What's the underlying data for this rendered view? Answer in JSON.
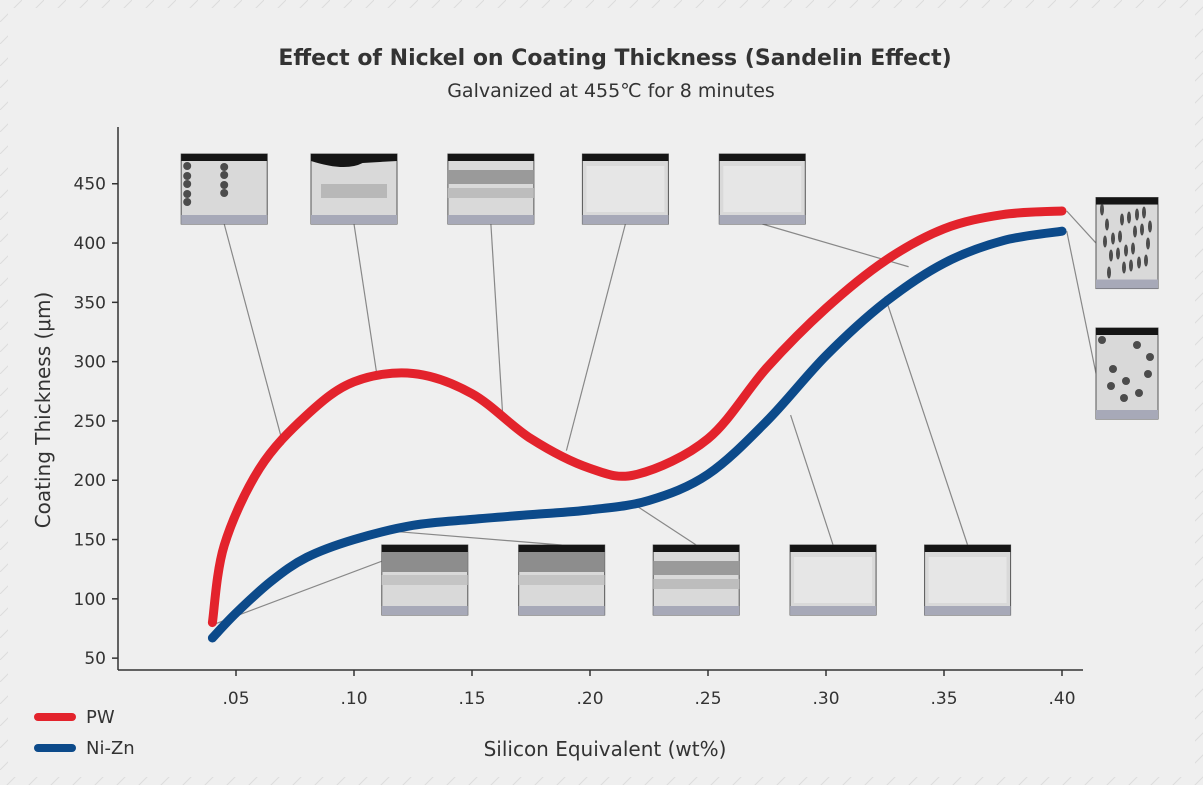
{
  "chart_data": {
    "type": "line",
    "title": "Effect of Nickel on Coating Thickness (Sandelin Effect)",
    "subtitle": "Galvanized at 455℃ for 8 minutes",
    "xlabel": "Silicon Equivalent (wt%)",
    "ylabel": "Coating Thickness (μm)",
    "xlim": [
      0,
      0.42
    ],
    "ylim": [
      0,
      460
    ],
    "x_ticks": [
      {
        "value": 0.05,
        "label": ".05"
      },
      {
        "value": 0.1,
        "label": ".10"
      },
      {
        "value": 0.15,
        "label": ".15"
      },
      {
        "value": 0.2,
        "label": ".20"
      },
      {
        "value": 0.25,
        "label": ".25"
      },
      {
        "value": 0.3,
        "label": ".30"
      },
      {
        "value": 0.35,
        "label": ".35"
      },
      {
        "value": 0.4,
        "label": ".40"
      }
    ],
    "y_ticks": [
      50,
      100,
      150,
      200,
      250,
      300,
      350,
      400,
      450
    ],
    "legend_position": "bottom-left",
    "grid": false,
    "series": [
      {
        "name": "PW",
        "color": "#e3232c",
        "x": [
          0.04,
          0.045,
          0.06,
          0.08,
          0.1,
          0.125,
          0.15,
          0.175,
          0.2,
          0.22,
          0.25,
          0.275,
          0.3,
          0.325,
          0.35,
          0.375,
          0.4
        ],
        "y": [
          80,
          145,
          210,
          255,
          283,
          290,
          273,
          235,
          210,
          205,
          235,
          295,
          345,
          385,
          412,
          424,
          427
        ]
      },
      {
        "name": "Ni-Zn",
        "color": "#0c4a8a",
        "x": [
          0.04,
          0.05,
          0.065,
          0.08,
          0.1,
          0.125,
          0.15,
          0.175,
          0.2,
          0.225,
          0.25,
          0.275,
          0.3,
          0.325,
          0.35,
          0.375,
          0.4
        ],
        "y": [
          67,
          88,
          115,
          135,
          150,
          162,
          167,
          171,
          175,
          183,
          205,
          250,
          305,
          350,
          383,
          402,
          410
        ]
      }
    ]
  },
  "micrographs": [
    {
      "name": "pw-micrograph-1",
      "x": 0.045,
      "y": 400,
      "tx": 0.07,
      "ty": 230,
      "variant": "dark-spots",
      "side": "top"
    },
    {
      "name": "pw-micrograph-2",
      "x": 0.1,
      "y": 400,
      "tx": 0.11,
      "ty": 285,
      "variant": "wave",
      "side": "top"
    },
    {
      "name": "pw-micrograph-3",
      "x": 0.158,
      "y": 400,
      "tx": 0.163,
      "ty": 255,
      "variant": "layered",
      "side": "top"
    },
    {
      "name": "pw-micrograph-4",
      "x": 0.215,
      "y": 400,
      "tx": 0.19,
      "ty": 225,
      "variant": "light",
      "side": "top"
    },
    {
      "name": "pw-micrograph-5",
      "x": 0.273,
      "y": 400,
      "tx": 0.335,
      "ty": 380,
      "variant": "light",
      "side": "top"
    },
    {
      "name": "pw-micrograph-6",
      "x": 0.425,
      "y": 400,
      "tx": 0.402,
      "ty": 427,
      "variant": "dark-columnar",
      "side": "right"
    },
    {
      "name": "nizn-micrograph-6",
      "x": 0.425,
      "y": 290,
      "tx": 0.402,
      "ty": 410,
      "variant": "dark-spots",
      "side": "right"
    },
    {
      "name": "nizn-micrograph-1",
      "x": 0.13,
      "y": 81,
      "tx": 0.04,
      "ty": 78,
      "variant": "thin-dark",
      "side": "bottom"
    },
    {
      "name": "nizn-micrograph-2",
      "x": 0.188,
      "y": 81,
      "tx": 0.11,
      "ty": 158,
      "variant": "thin-dark",
      "side": "bottom"
    },
    {
      "name": "nizn-micrograph-3",
      "x": 0.245,
      "y": 81,
      "tx": 0.22,
      "ty": 178,
      "variant": "layered",
      "side": "bottom"
    },
    {
      "name": "nizn-micrograph-4",
      "x": 0.303,
      "y": 81,
      "tx": 0.285,
      "ty": 255,
      "variant": "light",
      "side": "bottom"
    },
    {
      "name": "nizn-micrograph-5",
      "x": 0.36,
      "y": 81,
      "tx": 0.325,
      "ty": 355,
      "variant": "light",
      "side": "bottom"
    }
  ]
}
